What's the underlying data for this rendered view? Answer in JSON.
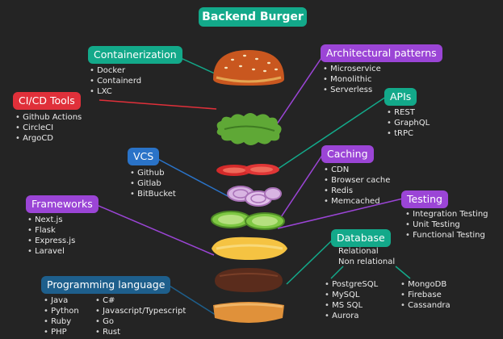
{
  "title": "Backend Burger",
  "colors": {
    "background": "#242424",
    "title": "#13a98a",
    "containerization": "#13a98a",
    "cicd": "#e0303a",
    "vcs": "#2a73c8",
    "frameworks": "#9b45d6",
    "programming": "#1e5f8c",
    "architectural": "#9b45d6",
    "apis": "#13a98a",
    "caching": "#9b45d6",
    "testing": "#9b45d6",
    "database": "#13a98a"
  },
  "categories": {
    "containerization": {
      "label": "Containerization",
      "items": [
        "Docker",
        "Containerd",
        "LXC"
      ]
    },
    "cicd": {
      "label": "CI/CD Tools",
      "items": [
        "Github Actions",
        "CircleCI",
        "ArgoCD"
      ]
    },
    "vcs": {
      "label": "VCS",
      "items": [
        "Github",
        "Gitlab",
        "BitBucket"
      ]
    },
    "frameworks": {
      "label": "Frameworks",
      "items": [
        "Next.js",
        "Flask",
        "Express.js",
        "Laravel"
      ]
    },
    "programming": {
      "label": "Programming language",
      "col1": [
        "Java",
        "Python",
        "Ruby",
        "PHP"
      ],
      "col2": [
        "C#",
        "Javascript/Typescript",
        "Go",
        "Rust"
      ]
    },
    "architectural": {
      "label": "Architectural patterns",
      "items": [
        "Microservice",
        "Monolithic",
        "Serverless"
      ]
    },
    "apis": {
      "label": "APIs",
      "items": [
        "REST",
        "GraphQL",
        "tRPC"
      ]
    },
    "caching": {
      "label": "Caching",
      "items": [
        "CDN",
        "Browser cache",
        "Redis",
        "Memcached"
      ]
    },
    "testing": {
      "label": "Testing",
      "items": [
        "Integration Testing",
        "Unit Testing",
        "Functional Testing"
      ]
    },
    "database": {
      "label": "Database",
      "types": [
        "Relational",
        "Non relational"
      ],
      "relational": [
        "PostgreSQL",
        "MySQL",
        "MS SQL",
        "Aurora"
      ],
      "nonrelational": [
        "MongoDB",
        "Firebase",
        "Cassandra"
      ]
    }
  },
  "icons": [
    "top-bun-icon",
    "lettuce-icon",
    "tomato-icon",
    "onion-icon",
    "cucumber-icon",
    "cheese-icon",
    "patty-icon",
    "bottom-bun-icon"
  ]
}
